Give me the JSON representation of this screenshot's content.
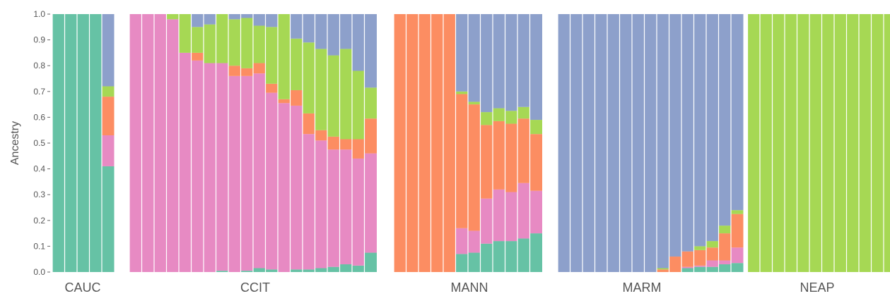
{
  "chart_data": {
    "type": "bar",
    "stacked": true,
    "ylabel": "Ancestry",
    "ylim": [
      0,
      1
    ],
    "yticks": [
      "0.0",
      "0.1",
      "0.2",
      "0.3",
      "0.4",
      "0.5",
      "0.6",
      "0.7",
      "0.8",
      "0.9",
      "1.0"
    ],
    "grid": false,
    "colors": {
      "teal": "#66c2a5",
      "pink": "#e78ac3",
      "orange": "#fc8d62",
      "green": "#a6d854",
      "blue": "#8da0cb"
    },
    "component_order": [
      "teal",
      "pink",
      "orange",
      "green",
      "blue"
    ],
    "groups": [
      {
        "label": "CAUC",
        "bars": [
          [
            1.0,
            0,
            0,
            0,
            0
          ],
          [
            1.0,
            0,
            0,
            0,
            0
          ],
          [
            1.0,
            0,
            0,
            0,
            0
          ],
          [
            1.0,
            0,
            0,
            0,
            0
          ],
          [
            0.41,
            0.12,
            0.15,
            0.04,
            0.28
          ]
        ]
      },
      {
        "label": "CCIT",
        "bars": [
          [
            0,
            1.0,
            0,
            0,
            0
          ],
          [
            0,
            1.0,
            0,
            0,
            0
          ],
          [
            0,
            1.0,
            0,
            0,
            0
          ],
          [
            0,
            0.98,
            0,
            0.02,
            0
          ],
          [
            0,
            0.85,
            0,
            0.15,
            0
          ],
          [
            0,
            0.82,
            0.03,
            0.1,
            0.05
          ],
          [
            0,
            0.81,
            0,
            0.15,
            0.04
          ],
          [
            0.005,
            0.805,
            0,
            0.19,
            0
          ],
          [
            0,
            0.76,
            0.04,
            0.18,
            0.02
          ],
          [
            0.005,
            0.755,
            0.03,
            0.195,
            0.015
          ],
          [
            0.015,
            0.755,
            0.04,
            0.145,
            0.045
          ],
          [
            0.01,
            0.685,
            0.035,
            0.22,
            0.05
          ],
          [
            0,
            0.655,
            0.015,
            0.33,
            0
          ],
          [
            0.01,
            0.635,
            0.06,
            0.2,
            0.095
          ],
          [
            0.01,
            0.525,
            0.08,
            0.275,
            0.11
          ],
          [
            0.015,
            0.495,
            0.04,
            0.315,
            0.135
          ],
          [
            0.02,
            0.455,
            0.05,
            0.315,
            0.16
          ],
          [
            0.03,
            0.445,
            0.04,
            0.35,
            0.135
          ],
          [
            0.025,
            0.415,
            0.075,
            0.265,
            0.22
          ],
          [
            0.075,
            0.385,
            0.135,
            0.12,
            0.285
          ]
        ]
      },
      {
        "label": "MANN",
        "bars": [
          [
            0,
            0,
            1.0,
            0,
            0
          ],
          [
            0,
            0,
            1.0,
            0,
            0
          ],
          [
            0,
            0,
            1.0,
            0,
            0
          ],
          [
            0,
            0,
            1.0,
            0,
            0
          ],
          [
            0,
            0,
            1.0,
            0,
            0
          ],
          [
            0.07,
            0.1,
            0.52,
            0.01,
            0.3
          ],
          [
            0.075,
            0.085,
            0.49,
            0.01,
            0.34
          ],
          [
            0.11,
            0.175,
            0.285,
            0.05,
            0.38
          ],
          [
            0.12,
            0.2,
            0.265,
            0.05,
            0.365
          ],
          [
            0.12,
            0.19,
            0.265,
            0.05,
            0.375
          ],
          [
            0.13,
            0.215,
            0.25,
            0.045,
            0.36
          ],
          [
            0.15,
            0.165,
            0.22,
            0.055,
            0.41
          ]
        ]
      },
      {
        "label": "MARM",
        "bars": [
          [
            0,
            0,
            0,
            0,
            1.0
          ],
          [
            0,
            0,
            0,
            0,
            1.0
          ],
          [
            0,
            0,
            0,
            0,
            1.0
          ],
          [
            0,
            0,
            0,
            0,
            1.0
          ],
          [
            0,
            0,
            0,
            0,
            1.0
          ],
          [
            0,
            0,
            0,
            0,
            1.0
          ],
          [
            0,
            0,
            0,
            0,
            1.0
          ],
          [
            0,
            0,
            0,
            0,
            1.0
          ],
          [
            0,
            0,
            0.01,
            0.005,
            0.985
          ],
          [
            0,
            0,
            0.06,
            0,
            0.94
          ],
          [
            0.015,
            0.005,
            0.06,
            0,
            0.92
          ],
          [
            0.02,
            0.005,
            0.06,
            0.015,
            0.9
          ],
          [
            0.02,
            0.025,
            0.05,
            0.025,
            0.88
          ],
          [
            0.03,
            0.015,
            0.105,
            0.03,
            0.82
          ],
          [
            0.035,
            0.06,
            0.13,
            0.015,
            0.76
          ]
        ]
      },
      {
        "label": "NEAP",
        "bars": [
          [
            0,
            0,
            0,
            1.0,
            0
          ],
          [
            0,
            0,
            0,
            1.0,
            0
          ],
          [
            0,
            0,
            0,
            1.0,
            0
          ],
          [
            0,
            0,
            0,
            1.0,
            0
          ],
          [
            0,
            0,
            0,
            1.0,
            0
          ],
          [
            0,
            0,
            0,
            1.0,
            0
          ],
          [
            0,
            0,
            0,
            1.0,
            0
          ],
          [
            0,
            0,
            0,
            1.0,
            0
          ],
          [
            0,
            0,
            0,
            1.0,
            0
          ],
          [
            0,
            0,
            0,
            1.0,
            0
          ],
          [
            0,
            0,
            0,
            1.0,
            0
          ],
          [
            0,
            0,
            0,
            1.0,
            0
          ]
        ]
      }
    ]
  }
}
